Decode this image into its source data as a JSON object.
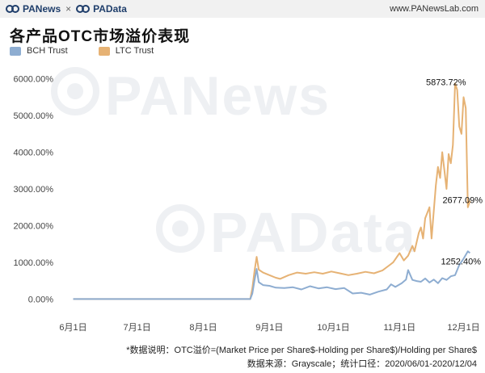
{
  "header": {
    "brand_left": "PANews",
    "brand_sep": "×",
    "brand_right": "PAData",
    "site": "www.PANewsLab.com"
  },
  "watermark": {
    "top": "PANews",
    "bottom": "PAData"
  },
  "notes": {
    "line1": "*数据说明：OTC溢价=(Market Price per Share$-Holding per Share$)/Holding per Share$",
    "line2": "数据来源：Grayscale；统计口径：2020/06/01-2020/12/04"
  },
  "colors": {
    "bch": "#8eadd1",
    "ltc": "#e6b274"
  },
  "chart_data": {
    "type": "line",
    "title": "各产品OTC市场溢价表现",
    "xlabel": "",
    "ylabel": "",
    "ylim": [
      -300,
      6300
    ],
    "y_ticks": [
      0,
      1000,
      2000,
      3000,
      4000,
      5000,
      6000
    ],
    "y_tick_labels": [
      "0.00%",
      "1000.00%",
      "2000.00%",
      "3000.00%",
      "4000.00%",
      "5000.00%",
      "6000.00%"
    ],
    "x_ticks": [
      "2020-06-01",
      "2020-07-01",
      "2020-08-01",
      "2020-09-01",
      "2020-10-01",
      "2020-11-01",
      "2020-12-01"
    ],
    "x_tick_labels": [
      "6月1日",
      "7月1日",
      "8月1日",
      "9月1日",
      "10月1日",
      "11月1日",
      "12月1日"
    ],
    "x_range": [
      "2020-05-25",
      "2020-12-08"
    ],
    "legend": "top-left",
    "grid": false,
    "series": [
      {
        "name": "BCH Trust",
        "color": "#8eadd1",
        "points": [
          [
            "2020-06-01",
            0
          ],
          [
            "2020-06-15",
            0
          ],
          [
            "2020-07-01",
            0
          ],
          [
            "2020-07-15",
            0
          ],
          [
            "2020-08-01",
            0
          ],
          [
            "2020-08-15",
            0
          ],
          [
            "2020-08-23",
            0
          ],
          [
            "2020-08-24",
            150
          ],
          [
            "2020-08-25",
            500
          ],
          [
            "2020-08-26",
            820
          ],
          [
            "2020-08-27",
            460
          ],
          [
            "2020-08-29",
            380
          ],
          [
            "2020-09-01",
            360
          ],
          [
            "2020-09-04",
            310
          ],
          [
            "2020-09-08",
            300
          ],
          [
            "2020-09-12",
            320
          ],
          [
            "2020-09-16",
            260
          ],
          [
            "2020-09-20",
            350
          ],
          [
            "2020-09-24",
            290
          ],
          [
            "2020-09-28",
            320
          ],
          [
            "2020-10-02",
            270
          ],
          [
            "2020-10-06",
            300
          ],
          [
            "2020-10-10",
            150
          ],
          [
            "2020-10-14",
            170
          ],
          [
            "2020-10-18",
            120
          ],
          [
            "2020-10-22",
            200
          ],
          [
            "2020-10-26",
            260
          ],
          [
            "2020-10-28",
            400
          ],
          [
            "2020-10-30",
            330
          ],
          [
            "2020-11-02",
            430
          ],
          [
            "2020-11-04",
            530
          ],
          [
            "2020-11-05",
            790
          ],
          [
            "2020-11-07",
            520
          ],
          [
            "2020-11-09",
            490
          ],
          [
            "2020-11-11",
            470
          ],
          [
            "2020-11-13",
            560
          ],
          [
            "2020-11-15",
            450
          ],
          [
            "2020-11-17",
            530
          ],
          [
            "2020-11-19",
            430
          ],
          [
            "2020-11-21",
            570
          ],
          [
            "2020-11-23",
            520
          ],
          [
            "2020-11-25",
            620
          ],
          [
            "2020-11-27",
            650
          ],
          [
            "2020-11-29",
            930
          ],
          [
            "2020-12-01",
            1100
          ],
          [
            "2020-12-03",
            1300
          ],
          [
            "2020-12-04",
            1252.4
          ]
        ]
      },
      {
        "name": "LTC Trust",
        "color": "#e6b274",
        "points": [
          [
            "2020-06-01",
            0
          ],
          [
            "2020-06-15",
            0
          ],
          [
            "2020-07-01",
            0
          ],
          [
            "2020-07-15",
            0
          ],
          [
            "2020-08-01",
            0
          ],
          [
            "2020-08-15",
            0
          ],
          [
            "2020-08-23",
            0
          ],
          [
            "2020-08-24",
            300
          ],
          [
            "2020-08-25",
            750
          ],
          [
            "2020-08-26",
            1150
          ],
          [
            "2020-08-27",
            800
          ],
          [
            "2020-08-29",
            720
          ],
          [
            "2020-09-01",
            650
          ],
          [
            "2020-09-04",
            580
          ],
          [
            "2020-09-06",
            550
          ],
          [
            "2020-09-10",
            650
          ],
          [
            "2020-09-14",
            720
          ],
          [
            "2020-09-18",
            690
          ],
          [
            "2020-09-22",
            730
          ],
          [
            "2020-09-26",
            690
          ],
          [
            "2020-09-30",
            750
          ],
          [
            "2020-10-04",
            700
          ],
          [
            "2020-10-08",
            650
          ],
          [
            "2020-10-12",
            690
          ],
          [
            "2020-10-16",
            740
          ],
          [
            "2020-10-20",
            700
          ],
          [
            "2020-10-24",
            780
          ],
          [
            "2020-10-27",
            910
          ],
          [
            "2020-10-29",
            1000
          ],
          [
            "2020-11-01",
            1250
          ],
          [
            "2020-11-03",
            1050
          ],
          [
            "2020-11-05",
            1180
          ],
          [
            "2020-11-07",
            1450
          ],
          [
            "2020-11-08",
            1300
          ],
          [
            "2020-11-10",
            1800
          ],
          [
            "2020-11-11",
            1950
          ],
          [
            "2020-11-12",
            1650
          ],
          [
            "2020-11-13",
            2200
          ],
          [
            "2020-11-15",
            2500
          ],
          [
            "2020-11-16",
            1650
          ],
          [
            "2020-11-18",
            3100
          ],
          [
            "2020-11-19",
            3600
          ],
          [
            "2020-11-20",
            3300
          ],
          [
            "2020-11-21",
            4000
          ],
          [
            "2020-11-22",
            3500
          ],
          [
            "2020-11-23",
            3000
          ],
          [
            "2020-11-24",
            3950
          ],
          [
            "2020-11-25",
            3700
          ],
          [
            "2020-11-26",
            4200
          ],
          [
            "2020-11-27",
            5873.72
          ],
          [
            "2020-11-28",
            5700
          ],
          [
            "2020-11-29",
            4700
          ],
          [
            "2020-11-30",
            4500
          ],
          [
            "2020-12-01",
            5500
          ],
          [
            "2020-12-02",
            5200
          ],
          [
            "2020-12-03",
            2500
          ],
          [
            "2020-12-04",
            2677.09
          ]
        ]
      }
    ],
    "annotations": [
      {
        "text": "5873.72%",
        "series": "LTC Trust",
        "x": "2020-11-27",
        "y": 5873.72
      },
      {
        "text": "2677.09%",
        "series": "LTC Trust",
        "x": "2020-12-04",
        "y": 2677.09
      },
      {
        "text": "1252.40%",
        "series": "BCH Trust",
        "x": "2020-12-04",
        "y": 1252.4
      }
    ]
  }
}
